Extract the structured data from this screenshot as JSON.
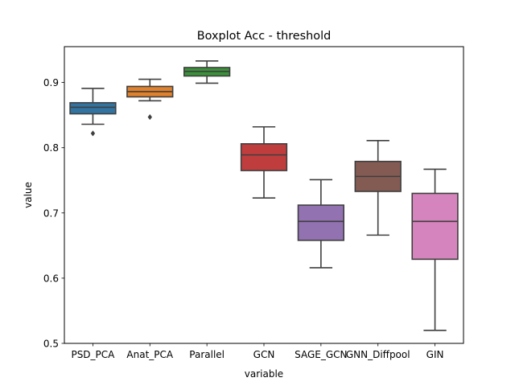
{
  "chart_data": {
    "type": "boxplot",
    "title": "Boxplot Acc - threshold",
    "xlabel": "variable",
    "ylabel": "value",
    "ylim": [
      0.5,
      0.955
    ],
    "yticks": [
      0.5,
      0.6,
      0.7,
      0.8,
      0.9
    ],
    "ytick_labels": [
      "0.5",
      "0.6",
      "0.7",
      "0.8",
      "0.9"
    ],
    "grid": false,
    "categories": [
      "PSD_PCA",
      "Anat_PCA",
      "Parallel",
      "GCN",
      "SAGE_GCN",
      "GNN_Diffpool",
      "GIN"
    ],
    "boxes": [
      {
        "category": "PSD_PCA",
        "color": "#3274a1",
        "whislo": 0.836,
        "q1": 0.852,
        "median": 0.862,
        "q3": 0.869,
        "whishi": 0.891,
        "fliers": [
          0.822
        ]
      },
      {
        "category": "Anat_PCA",
        "color": "#e1812c",
        "whislo": 0.872,
        "q1": 0.878,
        "median": 0.886,
        "q3": 0.894,
        "whishi": 0.905,
        "fliers": [
          0.847
        ]
      },
      {
        "category": "Parallel",
        "color": "#3a923a",
        "whislo": 0.899,
        "q1": 0.91,
        "median": 0.917,
        "q3": 0.923,
        "whishi": 0.933,
        "fliers": []
      },
      {
        "category": "GCN",
        "color": "#c03d3e",
        "whislo": 0.723,
        "q1": 0.765,
        "median": 0.789,
        "q3": 0.806,
        "whishi": 0.832,
        "fliers": []
      },
      {
        "category": "SAGE_GCN",
        "color": "#9372b2",
        "whislo": 0.616,
        "q1": 0.658,
        "median": 0.687,
        "q3": 0.712,
        "whishi": 0.751,
        "fliers": []
      },
      {
        "category": "GNN_Diffpool",
        "color": "#845b53",
        "whislo": 0.666,
        "q1": 0.733,
        "median": 0.756,
        "q3": 0.779,
        "whishi": 0.811,
        "fliers": []
      },
      {
        "category": "GIN",
        "color": "#d684bd",
        "whislo": 0.52,
        "q1": 0.629,
        "median": 0.687,
        "q3": 0.73,
        "whishi": 0.767,
        "fliers": []
      }
    ]
  }
}
